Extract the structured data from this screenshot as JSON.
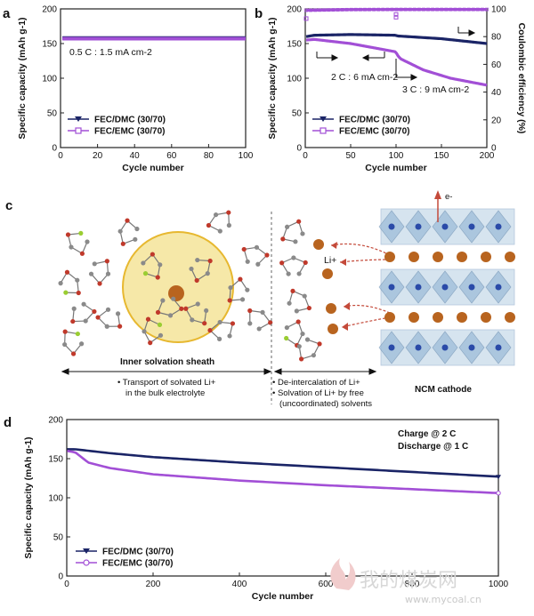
{
  "panels": {
    "a": {
      "label": "a"
    },
    "b": {
      "label": "b"
    },
    "c": {
      "label": "c"
    },
    "d": {
      "label": "d"
    }
  },
  "chart_data": [
    {
      "id": "a",
      "type": "scatter",
      "xlabel": "Cycle number",
      "ylabel": "Specific capacity (mAh g-1)",
      "xlim": [
        0,
        100
      ],
      "ylim": [
        0,
        200
      ],
      "xticks": [
        0,
        20,
        40,
        60,
        80,
        100
      ],
      "yticks": [
        0,
        50,
        100,
        150,
        200
      ],
      "annotation": "0.5 C : 1.5 mA cm-2",
      "legend_placement": "bottom-left",
      "series": [
        {
          "name": "FEC/DMC (30/70)",
          "color": "#1a2466",
          "marker": "triangle-down",
          "x": [
            1,
            100
          ],
          "y": [
            158,
            158
          ]
        },
        {
          "name": "FEC/EMC (30/70)",
          "color": "#a24fd6",
          "marker": "open-square",
          "x": [
            1,
            100
          ],
          "y": [
            157,
            157
          ]
        }
      ]
    },
    {
      "id": "b",
      "type": "line",
      "xlabel": "Cycle number",
      "ylabel": "Specific capacity (mAh g-1)",
      "y2label": "Coulombic efficiency (%)",
      "xlim": [
        0,
        200
      ],
      "ylim": [
        0,
        200
      ],
      "y2lim": [
        0,
        100
      ],
      "xticks": [
        0,
        50,
        100,
        150,
        200
      ],
      "yticks": [
        0,
        50,
        100,
        150,
        200
      ],
      "y2ticks": [
        0,
        20,
        40,
        60,
        80,
        100
      ],
      "annotations": [
        "2 C : 6 mA cm-2",
        "3 C : 9 mA cm-2"
      ],
      "legend_placement": "bottom-left",
      "series": [
        {
          "name": "FEC/DMC (30/70)",
          "color": "#1a2466",
          "x": [
            1,
            10,
            50,
            100,
            101,
            150,
            200
          ],
          "y": [
            160,
            162,
            163,
            162,
            161,
            157,
            150
          ]
        },
        {
          "name": "FEC/EMC (30/70)",
          "color": "#a24fd6",
          "x": [
            1,
            10,
            50,
            100,
            101,
            105,
            130,
            160,
            200
          ],
          "y": [
            155,
            156,
            150,
            138,
            134,
            128,
            112,
            100,
            90
          ]
        },
        {
          "name": "",
          "axis": "right",
          "color": "#a24fd6",
          "x": [
            1,
            50,
            100,
            150,
            200
          ],
          "y": [
            99,
            99.5,
            99.6,
            99.6,
            99.6
          ]
        }
      ]
    },
    {
      "id": "d",
      "type": "line",
      "xlabel": "Cycle number",
      "ylabel": "Specific capacity (mAh g-1)",
      "xlim": [
        0,
        1000
      ],
      "ylim": [
        0,
        200
      ],
      "xticks": [
        0,
        200,
        400,
        600,
        800,
        1000
      ],
      "yticks": [
        0,
        50,
        100,
        150,
        200
      ],
      "annotations": [
        "Charge @ 2 C",
        "Discharge @ 1 C"
      ],
      "legend_placement": "bottom-left",
      "series": [
        {
          "name": "FEC/DMC (30/70)",
          "color": "#1a2466",
          "x": [
            1,
            20,
            100,
            200,
            400,
            600,
            800,
            1000
          ],
          "y": [
            162,
            162,
            157,
            152,
            145,
            139,
            133,
            127
          ]
        },
        {
          "name": "FEC/EMC (30/70)",
          "color": "#a24fd6",
          "x": [
            1,
            20,
            50,
            100,
            200,
            400,
            600,
            800,
            1000
          ],
          "y": [
            160,
            158,
            145,
            138,
            130,
            122,
            116,
            111,
            106
          ]
        }
      ]
    }
  ],
  "schematic": {
    "sheath_label": "Inner solvation sheath",
    "li_label": "Li+",
    "electron_label": "e-",
    "cathode_label": "NCM cathode",
    "bullets_left": [
      "• Transport of solvated Li+",
      "in the bulk electrolyte"
    ],
    "bullets_right": [
      "• De-intercalation of Li+",
      "• Solvation of Li+ by free",
      "(uncoordinated) solvents"
    ],
    "colors": {
      "li": "#b8641f",
      "sheath_fill": "#f6e8a8",
      "sheath_stroke": "#e7b830",
      "octahedra": "#8fb3d3",
      "arrow": "#c44a3a"
    }
  },
  "watermark": {
    "main": "我的煤炭网",
    "sub": "www.mycoal.cn"
  }
}
